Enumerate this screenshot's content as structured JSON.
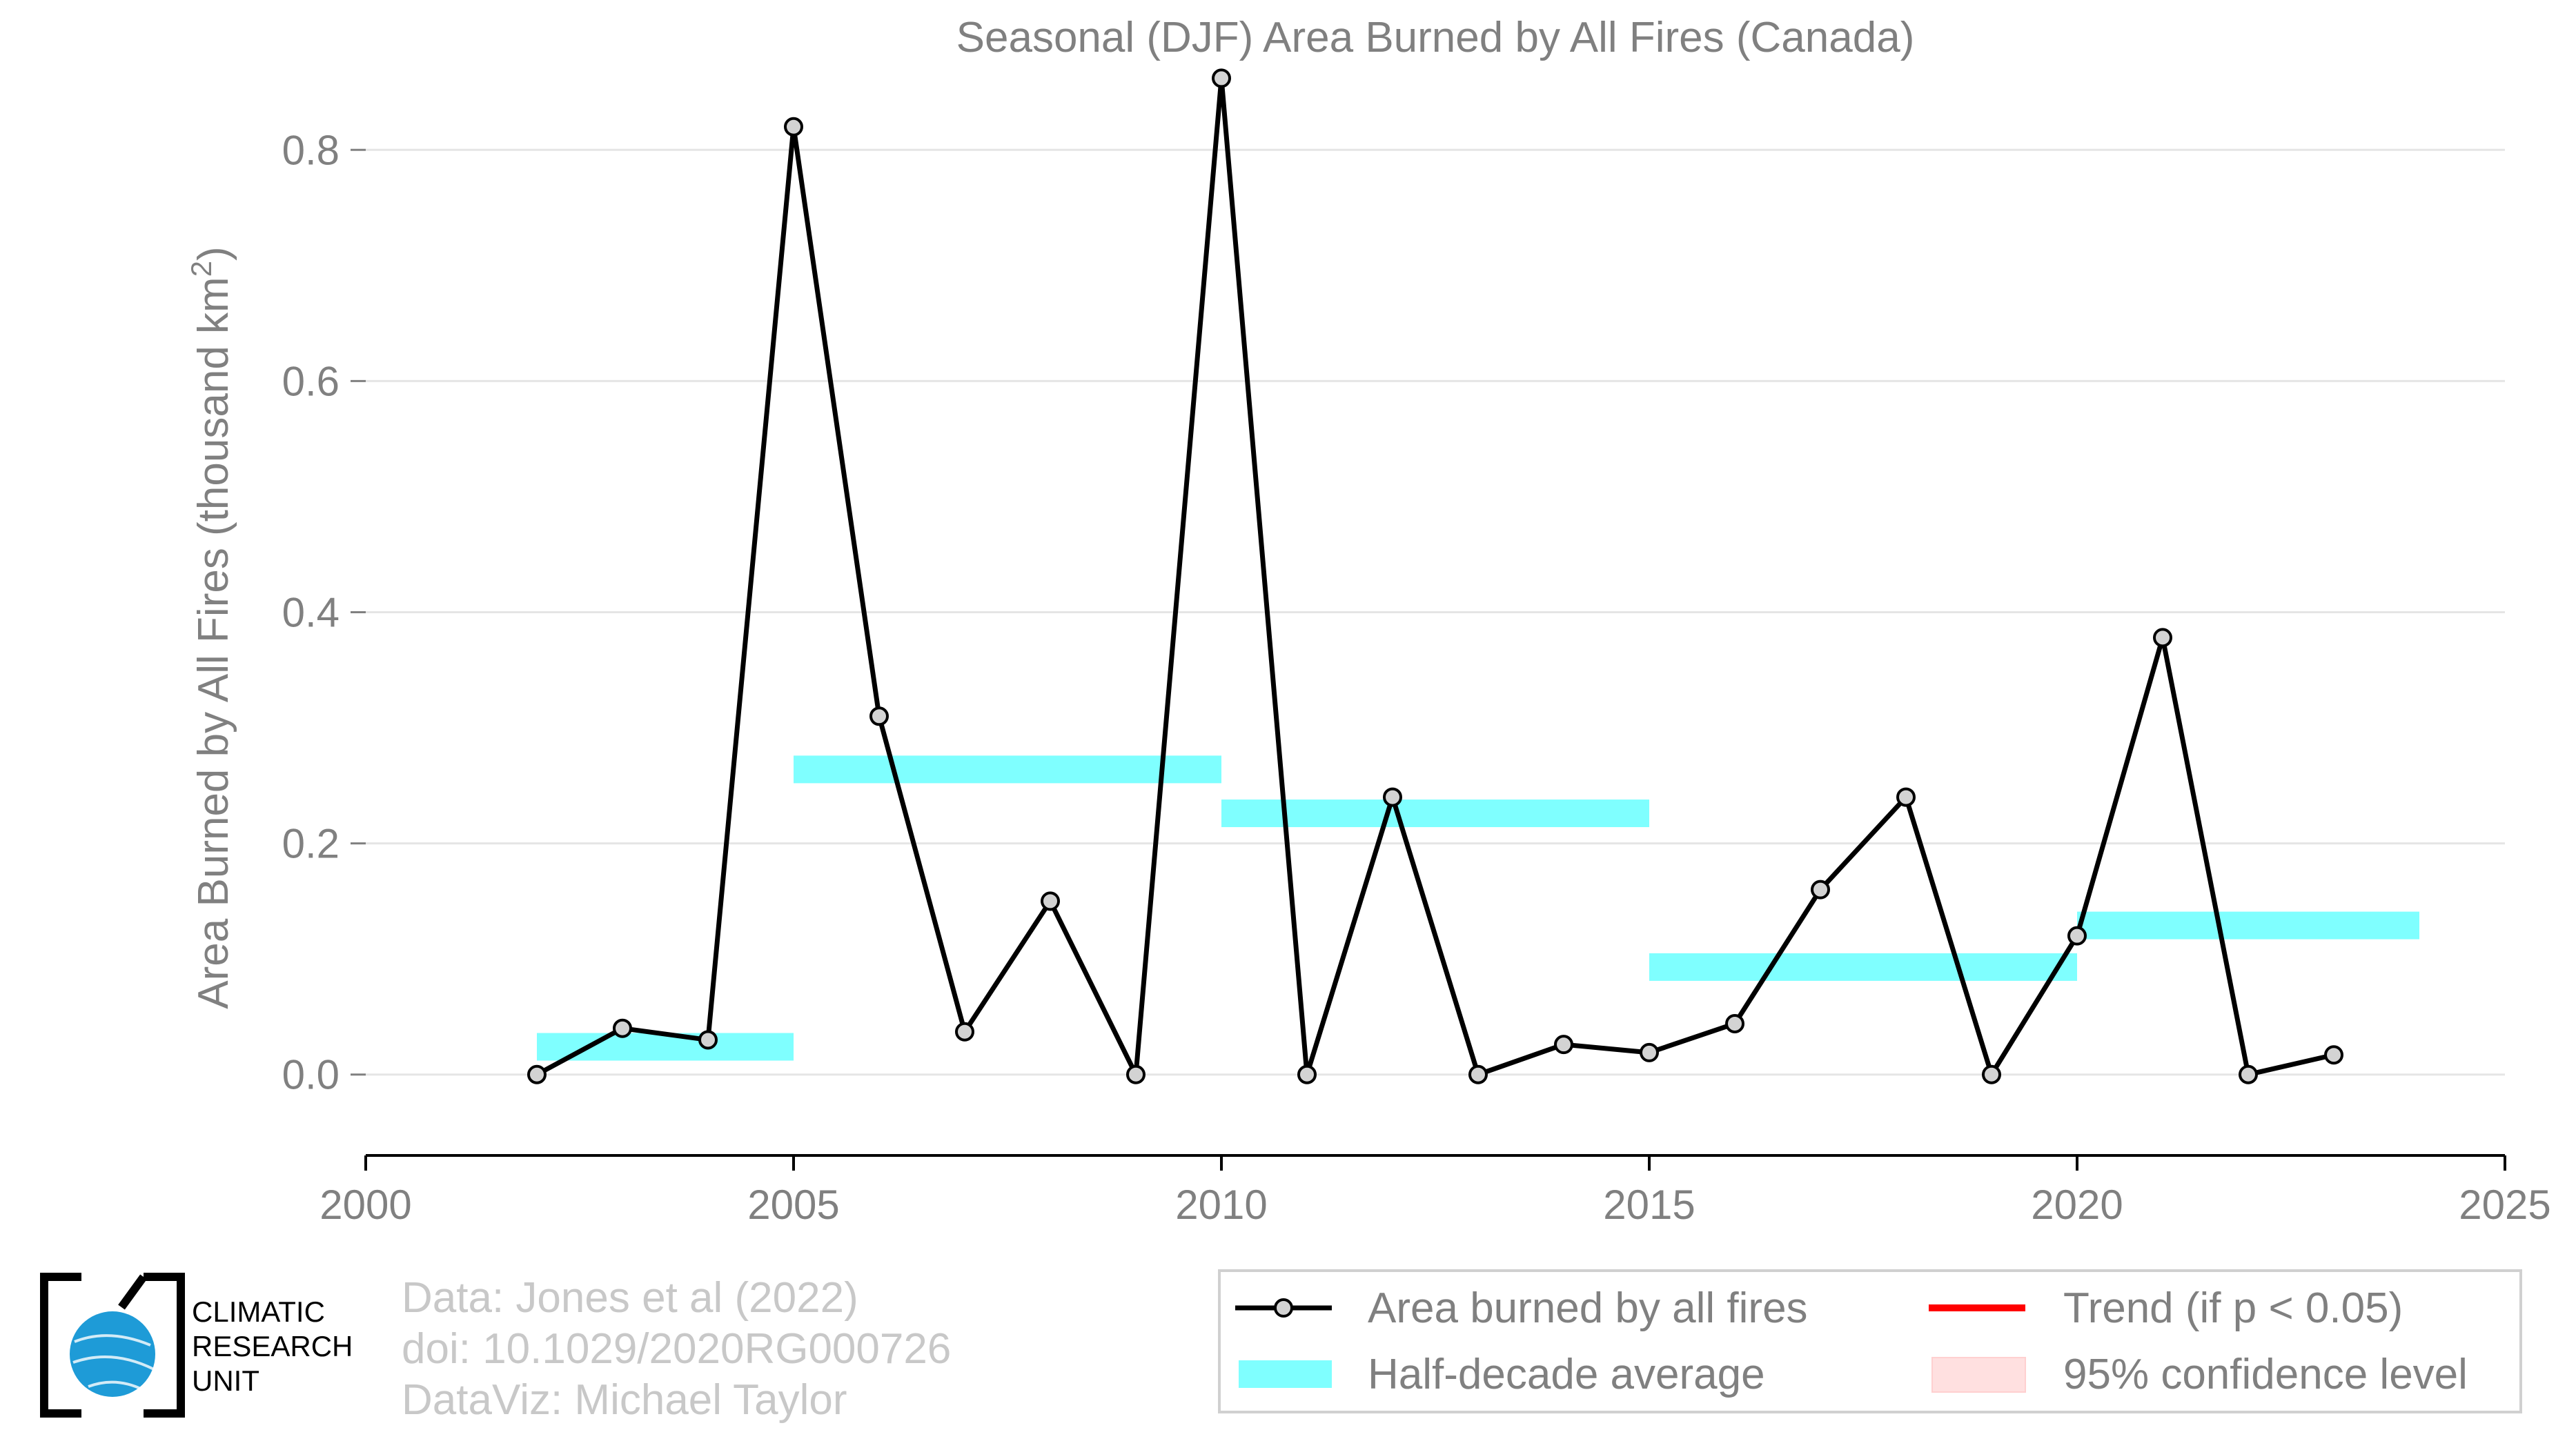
{
  "chart_data": {
    "type": "line",
    "title": "Seasonal (DJF) Area Burned by All Fires (Canada)",
    "xlabel": "",
    "ylabel": "Area Burned by All Fires (thousand km",
    "ylabel_sup": "2",
    "ylabel_close": ")",
    "xlim": [
      2000,
      2025
    ],
    "ylim": [
      -0.07,
      0.87
    ],
    "grid": true,
    "legend_position": "bottom-right",
    "x_ticks": [
      2000,
      2005,
      2010,
      2015,
      2020,
      2025
    ],
    "x_tick_labels": [
      "2000",
      "2005",
      "2010",
      "2015",
      "2020",
      "2025"
    ],
    "y_ticks": [
      0.0,
      0.2,
      0.4,
      0.6,
      0.8
    ],
    "y_tick_labels": [
      "0.0",
      "0.2",
      "0.4",
      "0.6",
      "0.8"
    ],
    "series": [
      {
        "name": "Area burned by all fires",
        "color": "#000000",
        "marker_fill": "#d3d3d3",
        "x": [
          2002,
          2003,
          2004,
          2005,
          2006,
          2007,
          2008,
          2009,
          2010,
          2011,
          2012,
          2013,
          2014,
          2015,
          2016,
          2017,
          2018,
          2019,
          2020,
          2021,
          2022,
          2023
        ],
        "values": [
          0.0,
          0.04,
          0.03,
          0.82,
          0.31,
          0.037,
          0.15,
          0.0,
          0.862,
          0.0,
          0.24,
          0.0,
          0.026,
          0.019,
          0.044,
          0.16,
          0.24,
          0.0,
          0.12,
          0.378,
          0.0,
          0.017
        ]
      }
    ],
    "half_decade_average": {
      "name": "Half-decade average",
      "color": "#7fffff",
      "segments": [
        {
          "x_start": 2002,
          "x_end": 2005,
          "value": 0.024
        },
        {
          "x_start": 2005,
          "x_end": 2010,
          "value": 0.264
        },
        {
          "x_start": 2010,
          "x_end": 2015,
          "value": 0.226
        },
        {
          "x_start": 2015,
          "x_end": 2020,
          "value": 0.093
        },
        {
          "x_start": 2020,
          "x_end": 2024,
          "value": 0.129
        }
      ]
    },
    "legend": [
      {
        "label": "Area burned by all fires",
        "kind": "line-marker",
        "color": "#000000"
      },
      {
        "label": "Trend (if p < 0.05)",
        "kind": "line",
        "color": "#ff0000"
      },
      {
        "label": "Half-decade average",
        "kind": "band",
        "color": "#7fffff"
      },
      {
        "label": "95% confidence level",
        "kind": "patch",
        "color": "#ffe0e0"
      }
    ]
  },
  "credits": {
    "line1": "Data: Jones et al (2022)",
    "line2": "doi: 10.1029/2020RG000726",
    "line3": "DataViz: Michael Taylor"
  },
  "logo": {
    "line1": "CLIMATIC",
    "line2": "RESEARCH",
    "line3": "UNIT",
    "globe_color": "#1e9bd7"
  }
}
